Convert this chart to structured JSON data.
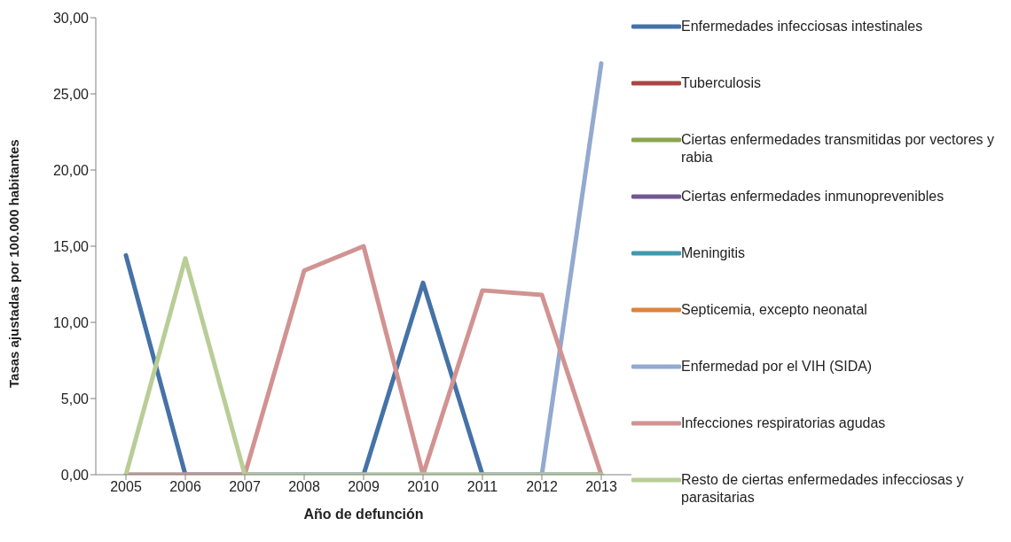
{
  "chart_data": {
    "type": "line",
    "xlabel": "Año de defunción",
    "ylabel": "Tasas ajustadas por 100.000 habitantes",
    "categories": [
      "2005",
      "2006",
      "2007",
      "2008",
      "2009",
      "2010",
      "2011",
      "2012",
      "2013"
    ],
    "ylim": [
      0,
      30
    ],
    "yticks": [
      {
        "value": 0,
        "label": "0,00"
      },
      {
        "value": 5,
        "label": "5,00"
      },
      {
        "value": 10,
        "label": "10,00"
      },
      {
        "value": 15,
        "label": "15,00"
      },
      {
        "value": 20,
        "label": "20,00"
      },
      {
        "value": 25,
        "label": "25,00"
      },
      {
        "value": 30,
        "label": "30,00"
      }
    ],
    "grid": false,
    "legend": "right",
    "marker": "none",
    "line_style": "solid",
    "series": [
      {
        "name": "Enfermedades infecciosas intestinales",
        "color": "#4572a7",
        "values": [
          14.4,
          0,
          0,
          0,
          0,
          12.6,
          0,
          0,
          0
        ]
      },
      {
        "name": "Tuberculosis",
        "color": "#aa4643",
        "values": [
          null,
          null,
          null,
          null,
          null,
          null,
          null,
          null,
          null
        ]
      },
      {
        "name": "Ciertas enfermedades transmitidas por vectores y rabia",
        "color": "#89a54e",
        "values": [
          null,
          null,
          null,
          null,
          null,
          null,
          null,
          null,
          null
        ]
      },
      {
        "name": "Ciertas enfermedades inmunoprevenibles",
        "color": "#71588f",
        "values": [
          null,
          null,
          null,
          null,
          null,
          null,
          null,
          null,
          null
        ]
      },
      {
        "name": "Meningitis",
        "color": "#4198af",
        "values": [
          null,
          null,
          null,
          null,
          null,
          null,
          null,
          null,
          null
        ]
      },
      {
        "name": "Septicemia, excepto neonatal",
        "color": "#db843d",
        "values": [
          null,
          null,
          null,
          null,
          null,
          null,
          null,
          null,
          null
        ]
      },
      {
        "name": "Enfermedad por el VIH (SIDA)",
        "color": "#93a9cf",
        "values": [
          0,
          0,
          0,
          0,
          0,
          0,
          0,
          0,
          27.0
        ]
      },
      {
        "name": "Infecciones respiratorias agudas",
        "color": "#d19392",
        "values": [
          0,
          0,
          0,
          13.4,
          15.0,
          0,
          12.1,
          11.8,
          0
        ]
      },
      {
        "name": "Resto de ciertas enfermedades infecciosas y parasitarias",
        "color": "#b9cd96",
        "values": [
          0,
          14.2,
          0,
          0,
          0,
          0,
          0,
          0,
          0
        ]
      }
    ]
  }
}
